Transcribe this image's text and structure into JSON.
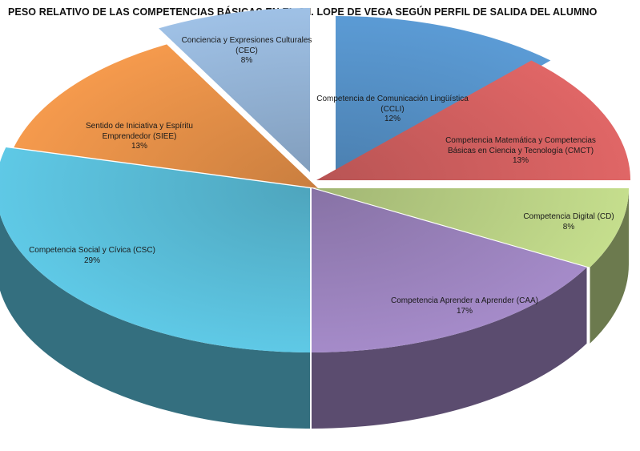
{
  "chart_data": {
    "type": "pie",
    "style": "3d-exploded",
    "title": "PESO RELATIVO DE LAS COMPETENCIAS BÁSICAS EN EL C.I. LOPE DE VEGA SEGÚN PERFIL DE SALIDA DEL ALUMNO",
    "slices": [
      {
        "name": "Competencia de Comunicación Lingüística (CCLI)",
        "value": 12,
        "label_value": "12%",
        "color": "#5b9bd5"
      },
      {
        "name": "Competencia Matemática y Competencias Básicas en Ciencia y Tecnología (CMCT)",
        "value": 13,
        "label_value": "13%",
        "color": "#e06666"
      },
      {
        "name": "Competencia Digital (CD)",
        "value": 8,
        "label_value": "8%",
        "color": "#c5de8d"
      },
      {
        "name": "Competencia Aprender a Aprender (CAA)",
        "value": 17,
        "label_value": "17%",
        "color": "#a58bc9"
      },
      {
        "name": "Competencia Social y Cívica (CSC)",
        "value": 29,
        "label_value": "29%",
        "color": "#5fc9e6"
      },
      {
        "name": "Sentido de Iniciativa y Espíritu Emprendedor (SIEE)",
        "value": 13,
        "label_value": "13%",
        "color": "#f59a4d"
      },
      {
        "name": "Conciencia y Expresiones Culturales (CEC)",
        "value": 8,
        "label_value": "8%",
        "color": "#9fc1e6"
      }
    ]
  }
}
